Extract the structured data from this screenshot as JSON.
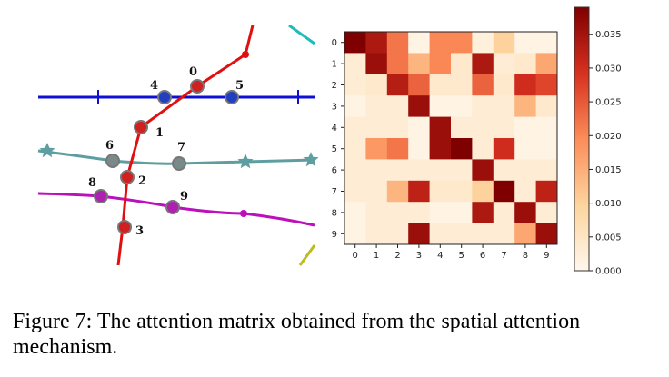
{
  "figure": {
    "node_labels": [
      "0",
      "1",
      "2",
      "3",
      "4",
      "5",
      "6",
      "7",
      "8",
      "9"
    ],
    "caption": "Figure 7: The attention matrix obtained from the spatial attention mechanism."
  },
  "chart_data": {
    "type": "heatmap",
    "title": "",
    "xlabel": "",
    "ylabel": "",
    "x_categories": [
      "0",
      "1",
      "2",
      "3",
      "4",
      "5",
      "6",
      "7",
      "8",
      "9"
    ],
    "y_categories": [
      "0",
      "1",
      "2",
      "3",
      "4",
      "5",
      "6",
      "7",
      "8",
      "9"
    ],
    "values": [
      [
        0.039,
        0.034,
        0.022,
        0.001,
        0.02,
        0.02,
        0.002,
        0.01,
        0.001,
        0.001
      ],
      [
        0.003,
        0.036,
        0.022,
        0.014,
        0.02,
        0.004,
        0.034,
        0.003,
        0.004,
        0.016
      ],
      [
        0.003,
        0.004,
        0.033,
        0.024,
        0.004,
        0.004,
        0.024,
        0.004,
        0.03,
        0.027
      ],
      [
        0.001,
        0.003,
        0.003,
        0.036,
        0.001,
        0.001,
        0.003,
        0.003,
        0.014,
        0.004
      ],
      [
        0.003,
        0.003,
        0.003,
        0.001,
        0.036,
        0.003,
        0.003,
        0.003,
        0.001,
        0.001
      ],
      [
        0.003,
        0.018,
        0.022,
        0.001,
        0.036,
        0.039,
        0.003,
        0.03,
        0.001,
        0.001
      ],
      [
        0.003,
        0.003,
        0.003,
        0.003,
        0.003,
        0.003,
        0.036,
        0.003,
        0.003,
        0.003
      ],
      [
        0.003,
        0.003,
        0.014,
        0.032,
        0.004,
        0.004,
        0.01,
        0.039,
        0.003,
        0.032
      ],
      [
        0.001,
        0.003,
        0.003,
        0.003,
        0.001,
        0.001,
        0.034,
        0.003,
        0.036,
        0.003
      ],
      [
        0.001,
        0.003,
        0.003,
        0.036,
        0.003,
        0.003,
        0.003,
        0.003,
        0.016,
        0.036
      ]
    ],
    "colorbar": {
      "label": "",
      "range": [
        0,
        0.039
      ],
      "ticks": [
        0.0,
        0.005,
        0.01,
        0.015,
        0.02,
        0.025,
        0.03,
        0.035
      ],
      "tick_labels": [
        "0.000",
        "0.005",
        "0.010",
        "0.015",
        "0.020",
        "0.025",
        "0.030",
        "0.035"
      ]
    },
    "colormap": {
      "name": "OrRd",
      "low": "#fff7ec",
      "high": "#7f0000"
    }
  }
}
